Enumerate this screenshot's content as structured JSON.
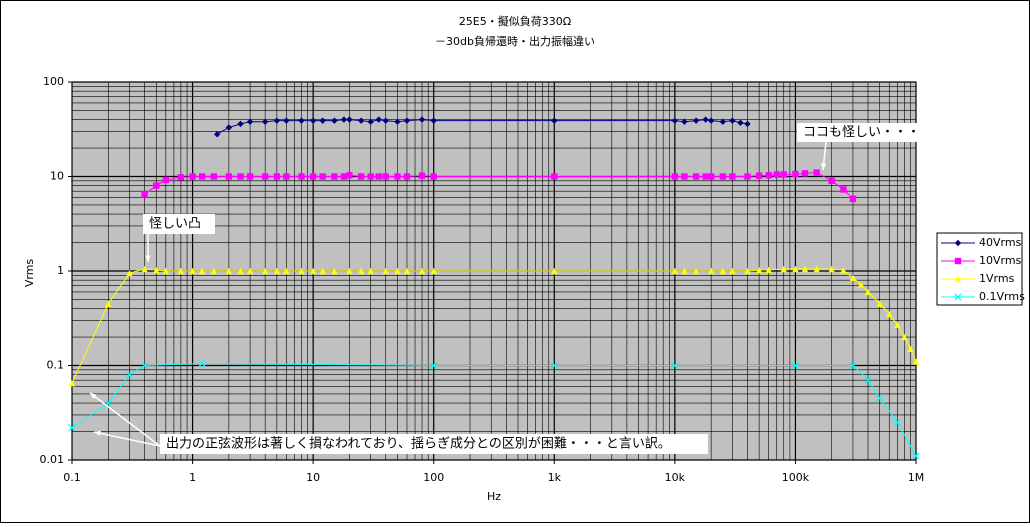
{
  "chart_data": {
    "type": "line",
    "title": "25E5・擬似負荷330Ω",
    "subtitle": "－30db負帰還時・出力振幅違い",
    "x_label": "Hz",
    "y_label": "Vrms",
    "xlog": true,
    "ylog": true,
    "grid": true,
    "minor_grid": true,
    "legend": "right",
    "background": "#c0c0c0",
    "xlim": [
      0.1,
      1000000
    ],
    "ylim": [
      0.01,
      100
    ],
    "xticks": [
      0.1,
      1,
      10,
      100,
      {
        "value": 1000,
        "label": "1k"
      },
      {
        "value": 10000,
        "label": "10k"
      },
      {
        "value": 100000,
        "label": "100k"
      },
      {
        "value": 1000000,
        "label": "1M"
      }
    ],
    "yticks": [
      0.01,
      0.1,
      1,
      10,
      100
    ],
    "series": [
      {
        "name": "40Vrms",
        "color": "#000080",
        "marker": "diamond",
        "x": [
          1.6,
          2,
          2.5,
          3,
          4,
          5,
          6,
          8,
          10,
          12,
          15,
          18,
          20,
          25,
          30,
          35,
          40,
          50,
          60,
          80,
          100,
          1000,
          10000,
          12000,
          15000,
          18000,
          20000,
          25000,
          30000,
          35000,
          40000
        ],
        "values": [
          28,
          33,
          36,
          38,
          38,
          39,
          39,
          39,
          39,
          39,
          39,
          40,
          40,
          39,
          38,
          40,
          39,
          38,
          39,
          40,
          39,
          39,
          39,
          38,
          39,
          40,
          39,
          38,
          39,
          37,
          36
        ]
      },
      {
        "name": "10Vrms",
        "color": "#ff00ff",
        "marker": "square",
        "x": [
          0.4,
          0.5,
          0.6,
          0.8,
          1,
          1.2,
          1.5,
          2,
          2.5,
          3,
          4,
          5,
          6,
          8,
          10,
          12,
          15,
          18,
          20,
          25,
          30,
          35,
          40,
          50,
          60,
          80,
          100,
          1000,
          10000,
          12000,
          15000,
          18000,
          20000,
          25000,
          30000,
          40000,
          50000,
          60000,
          70000,
          80000,
          100000,
          120000,
          150000,
          200000,
          250000,
          300000
        ],
        "values": [
          6.5,
          8,
          9.2,
          9.8,
          10,
          10,
          10,
          10,
          10,
          10,
          10,
          10,
          10,
          10,
          10,
          10,
          10,
          10,
          10.3,
          10,
          10,
          10,
          10,
          10,
          10,
          10.2,
          10,
          10,
          10,
          10,
          10,
          10,
          10,
          10,
          10,
          10,
          10.2,
          10.3,
          10.5,
          10.5,
          10.6,
          10.8,
          11,
          9,
          7.3,
          5.8
        ]
      },
      {
        "name": "1Vrms",
        "color": "#ffff00",
        "marker": "triangle",
        "x": [
          0.1,
          0.2,
          0.3,
          0.4,
          0.5,
          0.6,
          0.8,
          1,
          1.2,
          1.5,
          2,
          2.5,
          3,
          4,
          5,
          6,
          8,
          10,
          12,
          15,
          20,
          25,
          30,
          40,
          50,
          60,
          80,
          100,
          1000,
          10000,
          12000,
          15000,
          20000,
          25000,
          30000,
          40000,
          50000,
          60000,
          80000,
          100000,
          120000,
          150000,
          200000,
          250000,
          300000,
          350000,
          400000,
          500000,
          600000,
          700000,
          800000,
          900000,
          1000000
        ],
        "values": [
          0.065,
          0.45,
          0.95,
          1.05,
          1.02,
          1,
          1,
          1,
          1,
          1,
          1,
          1,
          1,
          1,
          1,
          1,
          1,
          1,
          1,
          1,
          1,
          1,
          1,
          1,
          1,
          1,
          1,
          1,
          1,
          1,
          1,
          1,
          1,
          1,
          1,
          1,
          1.02,
          1.03,
          1.05,
          1.05,
          1.05,
          1.05,
          1.05,
          1.02,
          0.85,
          0.72,
          0.6,
          0.45,
          0.35,
          0.27,
          0.2,
          0.15,
          0.11
        ]
      },
      {
        "name": "0.1Vrms",
        "color": "#00ffff",
        "marker": "x",
        "x": [
          0.1,
          0.2,
          0.3,
          0.4,
          1.2,
          100,
          1000,
          10000,
          100000,
          300000,
          400000,
          500000,
          700000,
          1000000
        ],
        "values": [
          0.022,
          0.04,
          0.08,
          0.1,
          0.105,
          0.1,
          0.1,
          0.1,
          0.1,
          0.1,
          0.07,
          0.045,
          0.025,
          0.011
        ]
      }
    ],
    "annotations": [
      "怪しい凸",
      "ココも怪しい・・・",
      "出力の正弦波形は著しく損なわれており、揺らぎ成分との区別が困難・・・と言い訳。"
    ]
  }
}
